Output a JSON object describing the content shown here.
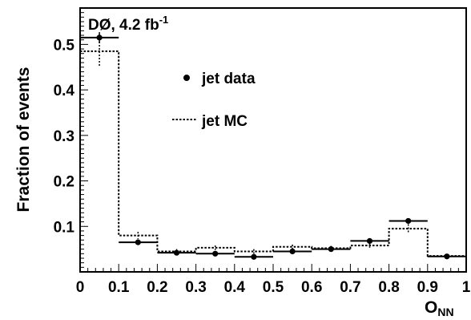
{
  "chart_data": {
    "type": "histogram",
    "title": "",
    "annotation": {
      "text": "DØ, 4.2 fb",
      "superscript": "-1"
    },
    "xlabel": {
      "main": "O",
      "subscript": "NN"
    },
    "ylabel": "Fraction of events",
    "xlim": [
      0,
      1
    ],
    "ylim": [
      0,
      0.58
    ],
    "x_ticks": [
      "0",
      "0.1",
      "0.2",
      "0.3",
      "0.4",
      "0.5",
      "0.6",
      "0.7",
      "0.8",
      "0.9",
      "1"
    ],
    "y_ticks": [
      "0.1",
      "0.2",
      "0.3",
      "0.4",
      "0.5"
    ],
    "y_tick_values": [
      0.1,
      0.2,
      0.3,
      0.4,
      0.5
    ],
    "bin_edges": [
      0,
      0.1,
      0.2,
      0.3,
      0.4,
      0.5,
      0.6,
      0.7,
      0.8,
      0.9,
      1.0
    ],
    "series": [
      {
        "name": "jet data",
        "style": "points",
        "values": [
          0.515,
          0.065,
          0.042,
          0.04,
          0.033,
          0.045,
          0.05,
          0.068,
          0.112,
          0.034
        ],
        "errors": [
          0.012,
          0.004,
          0.003,
          0.003,
          0.003,
          0.003,
          0.003,
          0.004,
          0.005,
          0.003
        ]
      },
      {
        "name": "jet MC",
        "style": "dotted-step",
        "values": [
          0.485,
          0.08,
          0.045,
          0.053,
          0.045,
          0.055,
          0.052,
          0.058,
          0.095,
          0.035
        ],
        "errors": [
          0.035,
          0.008,
          0.005,
          0.005,
          0.005,
          0.005,
          0.005,
          0.005,
          0.01,
          0.004
        ]
      }
    ],
    "legend": {
      "position": "top-center"
    },
    "grid": false
  }
}
